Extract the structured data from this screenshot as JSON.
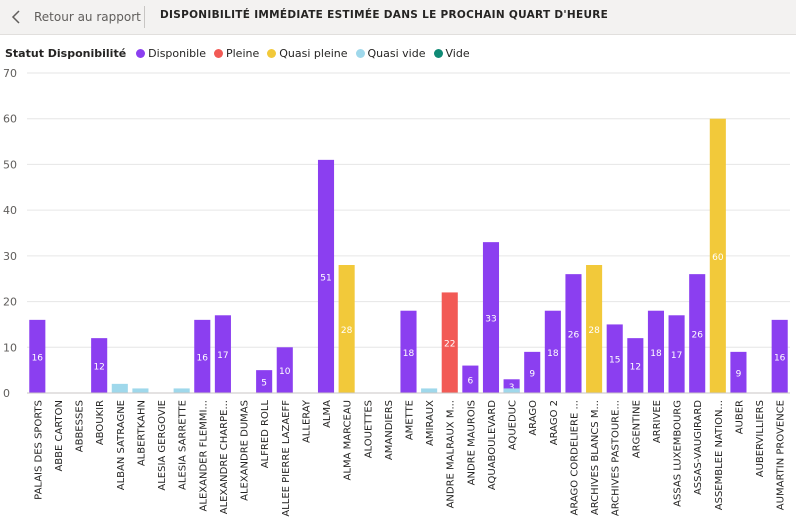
{
  "header": {
    "back_label": "Retour au rapport",
    "title": "DISPONIBILITÉ IMMÉDIATE ESTIMÉE DANS LE PROCHAIN QUART D'HEURE"
  },
  "legend": {
    "title": "Statut Disponibilité",
    "items": [
      {
        "label": "Disponible",
        "color": "#8b3ff0"
      },
      {
        "label": "Pleine",
        "color": "#f25a55"
      },
      {
        "label": "Quasi pleine",
        "color": "#f2c93a"
      },
      {
        "label": "Quasi vide",
        "color": "#9fd8eb"
      },
      {
        "label": "Vide",
        "color": "#0f8a75"
      }
    ]
  },
  "chart_data": {
    "type": "bar",
    "ylim": [
      0,
      70
    ],
    "yticks": [
      0,
      10,
      20,
      30,
      40,
      50,
      60,
      70
    ],
    "grid": true,
    "legend_position": "top-left",
    "categories": [
      "PALAIS DES SPORTS",
      "ABBE CARTON",
      "ABBESSES",
      "ABOUKIR",
      "ALBAN SATRAGNE",
      "ALBERTKAHN",
      "ALESIA GERGOVIE",
      "ALESIA SARRETTE",
      "ALEXANDER FLEMMI...",
      "ALEXANDRE CHARPE...",
      "ALEXANDRE DUMAS",
      "ALFRED ROLL",
      "ALLEE PIERRE LAZAEFF",
      "ALLERAY",
      "ALMA",
      "ALMA MARCEAU",
      "ALOUETTES",
      "AMANDIERS",
      "AMETTE",
      "AMIRAUX",
      "ANDRE MALRAUX M...",
      "ANDRE MAUROIS",
      "AQUABOULEVARD",
      "AQUEDUC",
      "ARAGO",
      "ARAGO 2",
      "ARAGO CORDELIERE ...",
      "ARCHIVES BLANCS M...",
      "ARCHIVES PASTOURE...",
      "ARGENTINE",
      "ARRIVEE",
      "ASSAS LUXEMBOURG",
      "ASSAS-VAUGIRARD",
      "ASSEMBLEE NATION...",
      "AUBER",
      "AUBERVILLIERS",
      "AUMARTIN PROVENCE"
    ],
    "series": [
      {
        "name": "Disponible",
        "color": "#8b3ff0",
        "values": [
          16,
          null,
          null,
          12,
          null,
          null,
          null,
          null,
          16,
          17,
          null,
          5,
          10,
          null,
          51,
          null,
          null,
          null,
          18,
          null,
          null,
          6,
          33,
          3,
          9,
          18,
          26,
          null,
          15,
          12,
          18,
          17,
          26,
          null,
          9,
          null,
          16
        ]
      },
      {
        "name": "Pleine",
        "color": "#f25a55",
        "values": [
          null,
          null,
          null,
          null,
          null,
          null,
          null,
          null,
          null,
          null,
          null,
          null,
          null,
          null,
          null,
          null,
          null,
          null,
          null,
          null,
          22,
          null,
          null,
          null,
          null,
          null,
          null,
          null,
          null,
          null,
          null,
          null,
          null,
          null,
          null,
          null,
          null
        ]
      },
      {
        "name": "Quasi pleine",
        "color": "#f2c93a",
        "values": [
          null,
          null,
          null,
          null,
          null,
          null,
          null,
          null,
          null,
          null,
          null,
          null,
          null,
          null,
          null,
          28,
          null,
          null,
          null,
          null,
          null,
          null,
          null,
          null,
          null,
          null,
          null,
          28,
          null,
          null,
          null,
          null,
          null,
          60,
          null,
          null,
          null
        ]
      },
      {
        "name": "Quasi vide",
        "color": "#9fd8eb",
        "values": [
          null,
          null,
          null,
          null,
          2,
          1,
          null,
          1,
          null,
          null,
          null,
          null,
          null,
          null,
          null,
          null,
          null,
          null,
          null,
          1,
          null,
          null,
          null,
          1,
          null,
          null,
          null,
          null,
          null,
          null,
          null,
          null,
          null,
          null,
          null,
          null,
          null
        ]
      },
      {
        "name": "Vide",
        "color": "#0f8a75",
        "values": [
          null,
          null,
          null,
          null,
          null,
          null,
          null,
          null,
          null,
          null,
          null,
          null,
          null,
          null,
          null,
          null,
          null,
          null,
          null,
          null,
          null,
          null,
          null,
          null,
          null,
          null,
          null,
          null,
          null,
          null,
          null,
          null,
          null,
          null,
          null,
          null,
          null
        ]
      }
    ]
  }
}
